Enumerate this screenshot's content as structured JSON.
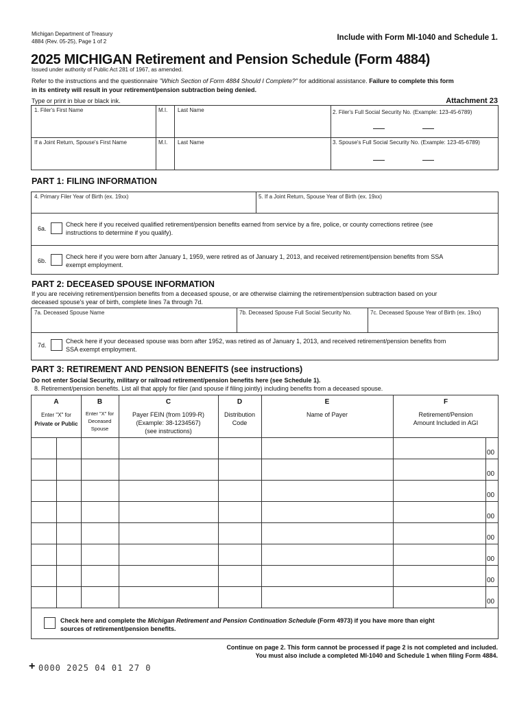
{
  "header": {
    "agency": "Michigan Department of Treasury",
    "revision": "4884 (Rev. 05-25), Page 1 of 2",
    "include_note": "Include with Form MI-1040 and Schedule 1.",
    "title": "2025 MICHIGAN Retirement and Pension Schedule (Form 4884)",
    "authority": "Issued under authority of Public Act 281 of 1967, as amended.",
    "refer_a": "Refer to the instructions and the questionnaire ",
    "refer_italic": "\"Which Section of Form 4884 Should I Complete?\"",
    "refer_b": " for additional assistance. ",
    "refer_bold": "Failure to complete this form",
    "refer_bold2": "in its entirety will result in your retirement/pension subtraction being denied.",
    "ink_note": "Type or print in blue or black ink.",
    "attachment": "Attachment 23"
  },
  "identity": {
    "filer_first": "1. Filer's First Name",
    "mi": "M.I.",
    "last": "Last Name",
    "filer_ssn": "2. Filer's Full Social Security No. (Example: 123-45-6789)",
    "spouse_first": "If a Joint Return, Spouse's First Name",
    "spouse_ssn": "3. Spouse's Full Social Security No. (Example: 123-45-6789)"
  },
  "part1": {
    "heading": "PART 1: FILING INFORMATION",
    "line4": "4. Primary Filer Year of Birth (ex. 19xx)",
    "line5": "5. If a Joint Return, Spouse Year of Birth (ex. 19xx)",
    "l6a": "6a.",
    "text6a_1": "Check here if you received qualified retirement/pension benefits earned from service by a fire, police, or county corrections retiree (see",
    "text6a_2": "instructions to determine if you qualify).",
    "l6b": "6b.",
    "text6b_1": "Check here if you were born after January 1, 1959, were retired as of January 1, 2013, and received retirement/pension benefits from SSA",
    "text6b_2": "exempt employment."
  },
  "part2": {
    "heading": "PART 2: DECEASED SPOUSE INFORMATION",
    "intro_1": "If you are receiving retirement/pension benefits from a deceased spouse, or are otherwise claiming the retirement/pension subtraction based on your",
    "intro_2": "deceased spouse's year of birth, complete lines 7a through 7d.",
    "l7a": "7a. Deceased Spouse Name",
    "l7b": "7b. Deceased Spouse Full Social Security No.",
    "l7c": "7c. Deceased Spouse Year of Birth (ex. 19xx)",
    "l7d": "7d.",
    "text7d_1": "Check here if your deceased spouse was born after 1952, was retired as of January 1, 2013, and received retirement/pension benefits from",
    "text7d_2": "SSA exempt employment."
  },
  "part3": {
    "heading": "PART 3: RETIREMENT AND PENSION BENEFITS (see instructions)",
    "warning": "Do not enter Social Security, military or railroad retirement/pension benefits here (see Schedule 1).",
    "line8": "8.  Retirement/pension benefits. List all that apply for filer (and spouse if filing jointly) including benefits from a deceased spouse.",
    "columns": [
      {
        "letter": "A",
        "l1": "Enter \"X\" for",
        "l2": "Private or Public",
        "l3": ""
      },
      {
        "letter": "B",
        "l1": "Enter \"X\" for",
        "l2": "Deceased",
        "l3": "Spouse"
      },
      {
        "letter": "C",
        "l1": "Payer FEIN (from 1099-R)",
        "l2": "(Example: 38-1234567)",
        "l3": "(see instructions)"
      },
      {
        "letter": "D",
        "l1": "Distribution",
        "l2": "Code",
        "l3": ""
      },
      {
        "letter": "E",
        "l1": "Name of Payer",
        "l2": "",
        "l3": ""
      },
      {
        "letter": "F",
        "l1": "Retirement/Pension",
        "l2": "Amount Included in AGI",
        "l3": ""
      }
    ],
    "rows": [
      {
        "cents": "00"
      },
      {
        "cents": "00"
      },
      {
        "cents": "00"
      },
      {
        "cents": "00"
      },
      {
        "cents": "00"
      },
      {
        "cents": "00"
      },
      {
        "cents": "00"
      },
      {
        "cents": "00"
      }
    ],
    "more_a": "Check here and complete the ",
    "more_italic": "Michigan Retirement and Pension Continuation Schedule",
    "more_b": " (Form 4973) if you have more than eight",
    "more_c": "sources of retirement/pension benefits."
  },
  "footer": {
    "continue": "Continue on page 2. This form cannot be processed if page 2 is not completed and included.",
    "include": "You must also include a completed MI-1040 and Schedule 1 when filing Form 4884.",
    "plus": "+",
    "code": "0000 2025 04 01 27 0"
  }
}
